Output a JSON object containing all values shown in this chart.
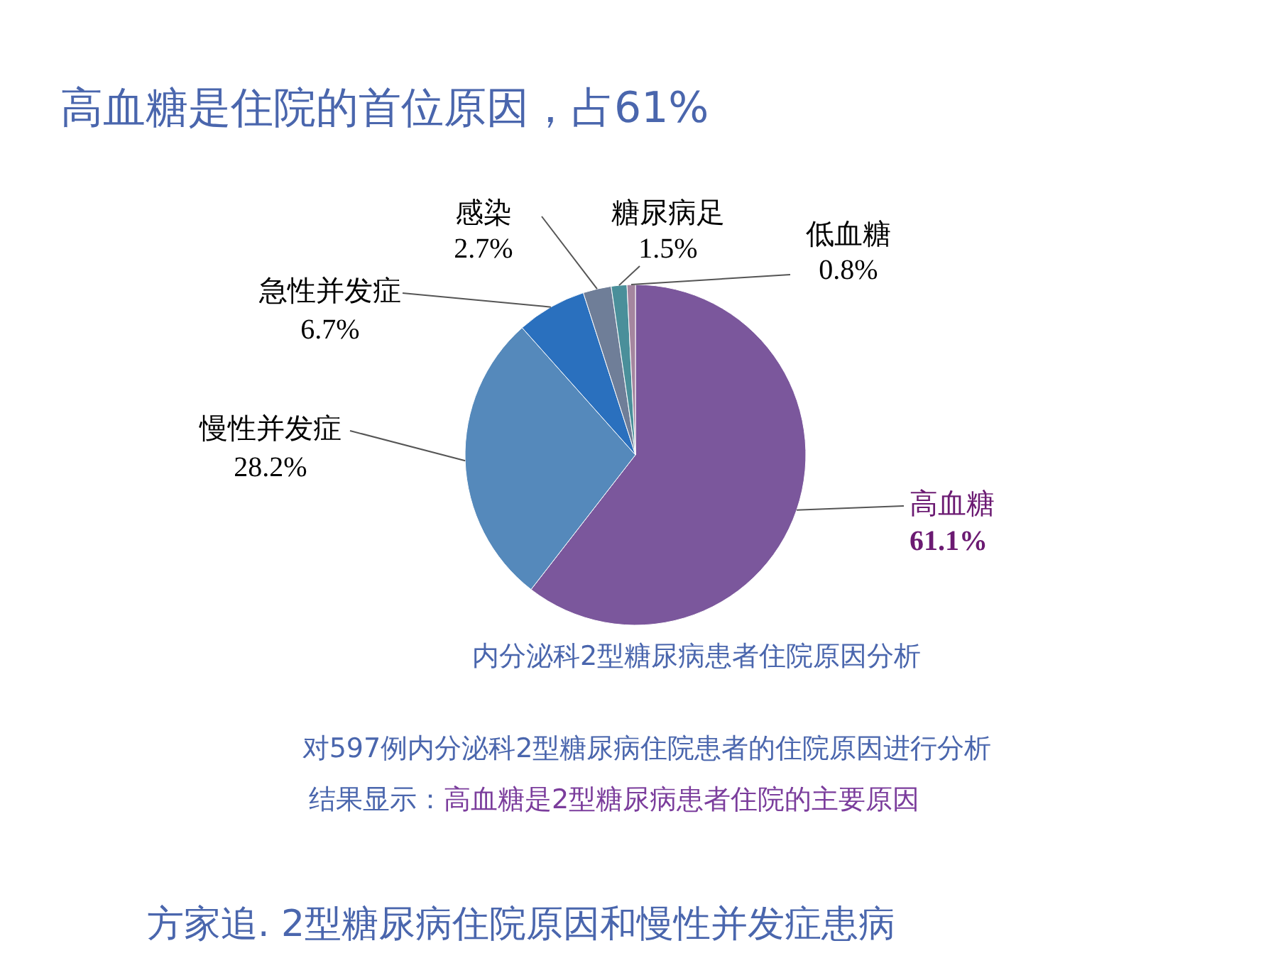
{
  "chart_data": {
    "type": "pie",
    "title": "高血糖是住院的首位原因，占61%",
    "subtitle": "内分泌科2型糖尿病患者住院原因分析",
    "categories": [
      "高血糖",
      "慢性并发症",
      "急性并发症",
      "感染",
      "糖尿病足",
      "低血糖"
    ],
    "values": [
      61.1,
      28.2,
      6.7,
      2.7,
      1.5,
      0.8
    ],
    "colors": [
      "#7b579c",
      "#5589bb",
      "#2a70be",
      "#6f7e98",
      "#4a8f9a",
      "#a5869f"
    ],
    "value_labels": [
      "61.1%",
      "28.2%",
      "6.7%",
      "2.7%",
      "1.5%",
      "0.8%"
    ],
    "annotations": [
      "对597例内分泌科2型糖尿病住院患者的住院原因进行分析",
      "结果显示：",
      "高血糖是2型糖尿病患者住院的主要原因",
      "方家追. 2型糖尿病住院原因和慢性并发症患病"
    ]
  }
}
